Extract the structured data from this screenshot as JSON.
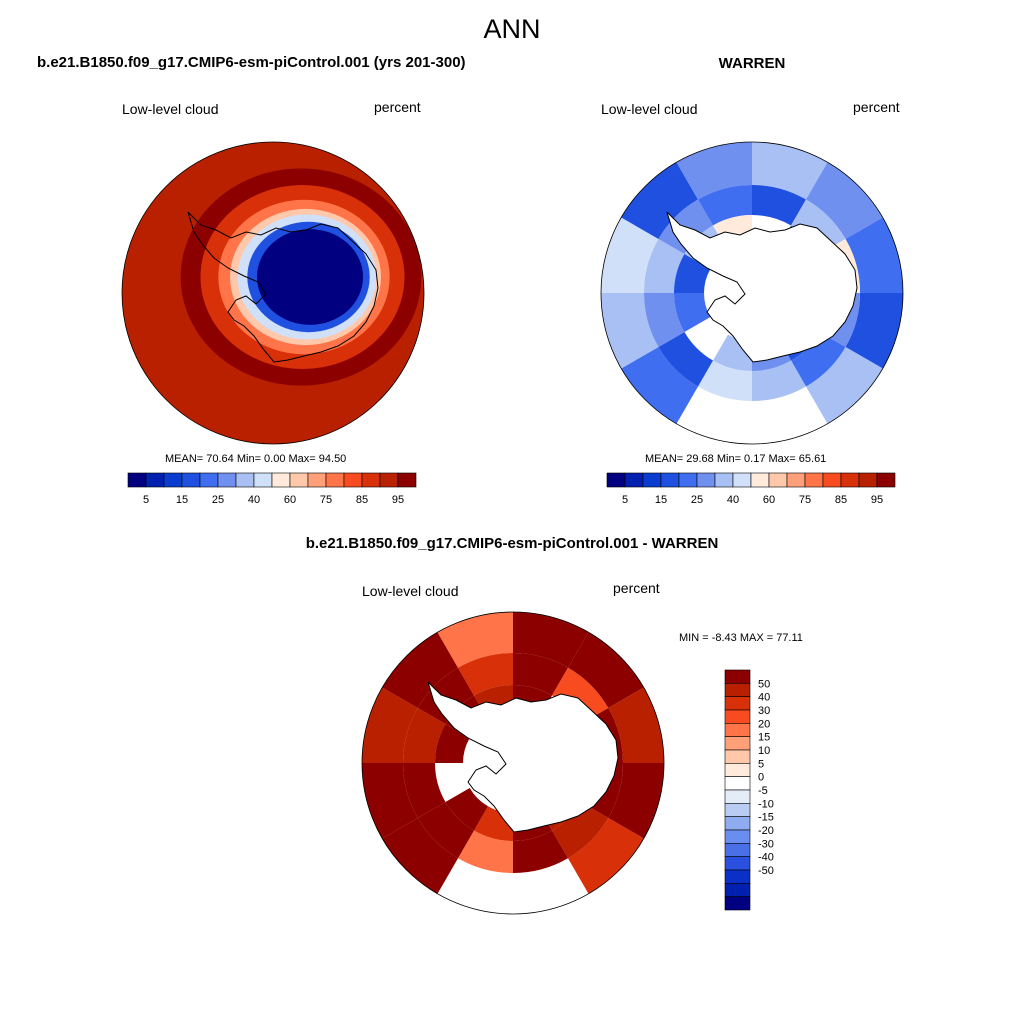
{
  "title": "ANN",
  "colors": {
    "abs_palette": [
      "#000080",
      "#0020b0",
      "#0a3cd0",
      "#2050e0",
      "#3f6ef0",
      "#7090f0",
      "#a8c0f4",
      "#d0e0f8",
      "#ffeadc",
      "#ffc8aa",
      "#ffa078",
      "#ff7448",
      "#f84c20",
      "#d83008",
      "#b82000",
      "#8c0000"
    ],
    "diff_palette": [
      "#8c0000",
      "#b82000",
      "#d83008",
      "#f84c20",
      "#ff7448",
      "#ffa078",
      "#ffc8aa",
      "#ffeadc",
      "#ffffff",
      "#e4ecf8",
      "#b8ccf4",
      "#90acf0",
      "#6a8ef0",
      "#4a70e8",
      "#2a50e0",
      "#0a30c8",
      "#0020b0",
      "#000080"
    ],
    "coast": "#000000",
    "land_fill": "#ffffff"
  },
  "chart_data": [
    {
      "type": "heatmap",
      "projection": "south-polar-stereographic",
      "title": "b.e21.B1850.f09_g17.CMIP6-esm-piControl.001 (yrs 201-300)",
      "left_label": "Low-level cloud",
      "right_label": "percent",
      "stats": {
        "mean": "70.64",
        "min": "0.00",
        "max": "94.50"
      },
      "stats_text": "MEAN=  70.64  Min=   0.00  Max=  94.50",
      "colorbar_ticks": [
        "5",
        "15",
        "25",
        "40",
        "60",
        "75",
        "85",
        "95"
      ],
      "field_levels": [
        95,
        85,
        75,
        60,
        40,
        15,
        5
      ]
    },
    {
      "type": "heatmap",
      "projection": "south-polar-stereographic",
      "title": "WARREN",
      "left_label": "Low-level cloud",
      "right_label": "percent",
      "stats": {
        "mean": "29.68",
        "min": "0.17",
        "max": "65.61"
      },
      "stats_text": "MEAN=  29.68  Min=   0.17  Max=  65.61",
      "colorbar_ticks": [
        "5",
        "15",
        "25",
        "40",
        "60",
        "75",
        "85",
        "95"
      ]
    },
    {
      "type": "heatmap",
      "projection": "south-polar-stereographic",
      "title": "b.e21.B1850.f09_g17.CMIP6-esm-piControl.001 - WARREN",
      "left_label": "Low-level cloud",
      "right_label": "percent",
      "stats": {
        "min": "-8.43",
        "max": "77.11"
      },
      "stats_text": "MIN =  -8.43 MAX =  77.11",
      "colorbar_ticks": [
        "50",
        "40",
        "30",
        "20",
        "15",
        "10",
        "5",
        "0",
        "-5",
        "-10",
        "-15",
        "-20",
        "-30",
        "-40",
        "-50"
      ]
    }
  ]
}
